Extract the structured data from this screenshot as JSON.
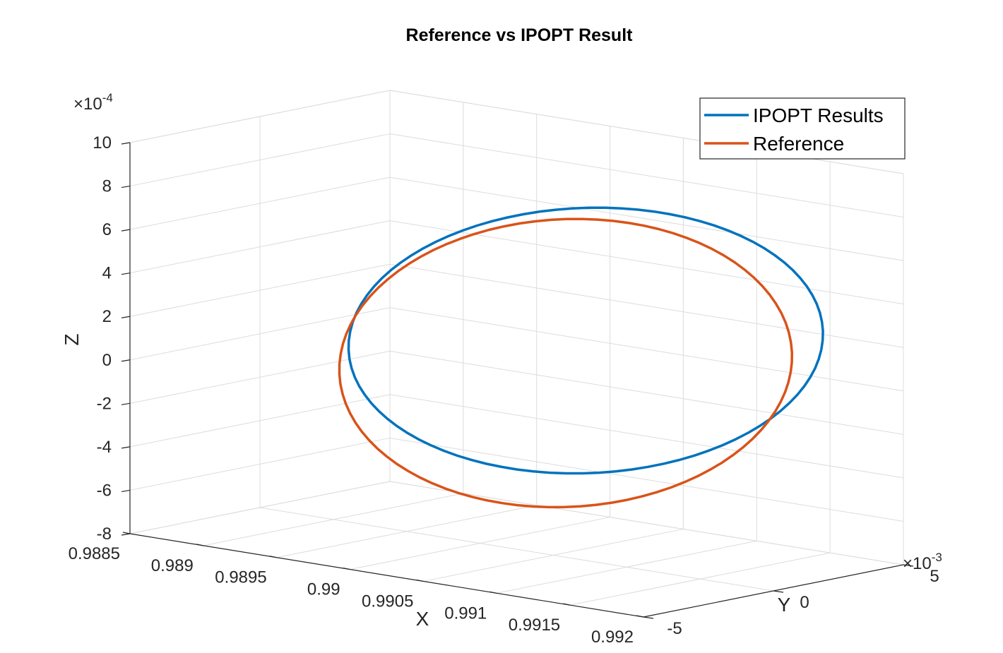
{
  "chart_data": {
    "type": "line",
    "projection": "3d",
    "title": "Reference vs IPOPT Result",
    "xlabel": "X",
    "ylabel": "Y",
    "zlabel": "Z",
    "x_ticks": [
      "0.9885",
      "0.989",
      "0.9895",
      "0.99",
      "0.9905",
      "0.991",
      "0.9915",
      "0.992"
    ],
    "y_ticks": [
      "-5",
      "0",
      "5"
    ],
    "y_exponent": "-3",
    "z_ticks": [
      "-8",
      "-6",
      "-4",
      "-2",
      "0",
      "2",
      "4",
      "6",
      "8",
      "10"
    ],
    "z_exponent": "-4",
    "xlim": [
      0.9885,
      0.992
    ],
    "ylim": [
      -0.005,
      0.005
    ],
    "zlim": [
      -0.0008,
      0.001
    ],
    "grid": true,
    "box": "back-planes",
    "legend_position": "top-right",
    "series": [
      {
        "name": "IPOPT Results",
        "color": "#0072BD",
        "shape": "closed-loop",
        "center": [
          0.99068,
          0.00023,
          0.000202
        ],
        "axis_a": [
          0.00106,
          0.00308,
          0
        ],
        "axis_b": [
          0.000105,
          0.00048,
          0.00061
        ]
      },
      {
        "name": "Reference",
        "color": "#D95319",
        "shape": "closed-loop",
        "center": [
          0.99066,
          -0.00043,
          0.000112
        ],
        "axis_a": [
          0.00102,
          0.0029,
          0
        ],
        "axis_b": [
          8.5e-05,
          0.00047,
          0.00066
        ]
      }
    ]
  }
}
